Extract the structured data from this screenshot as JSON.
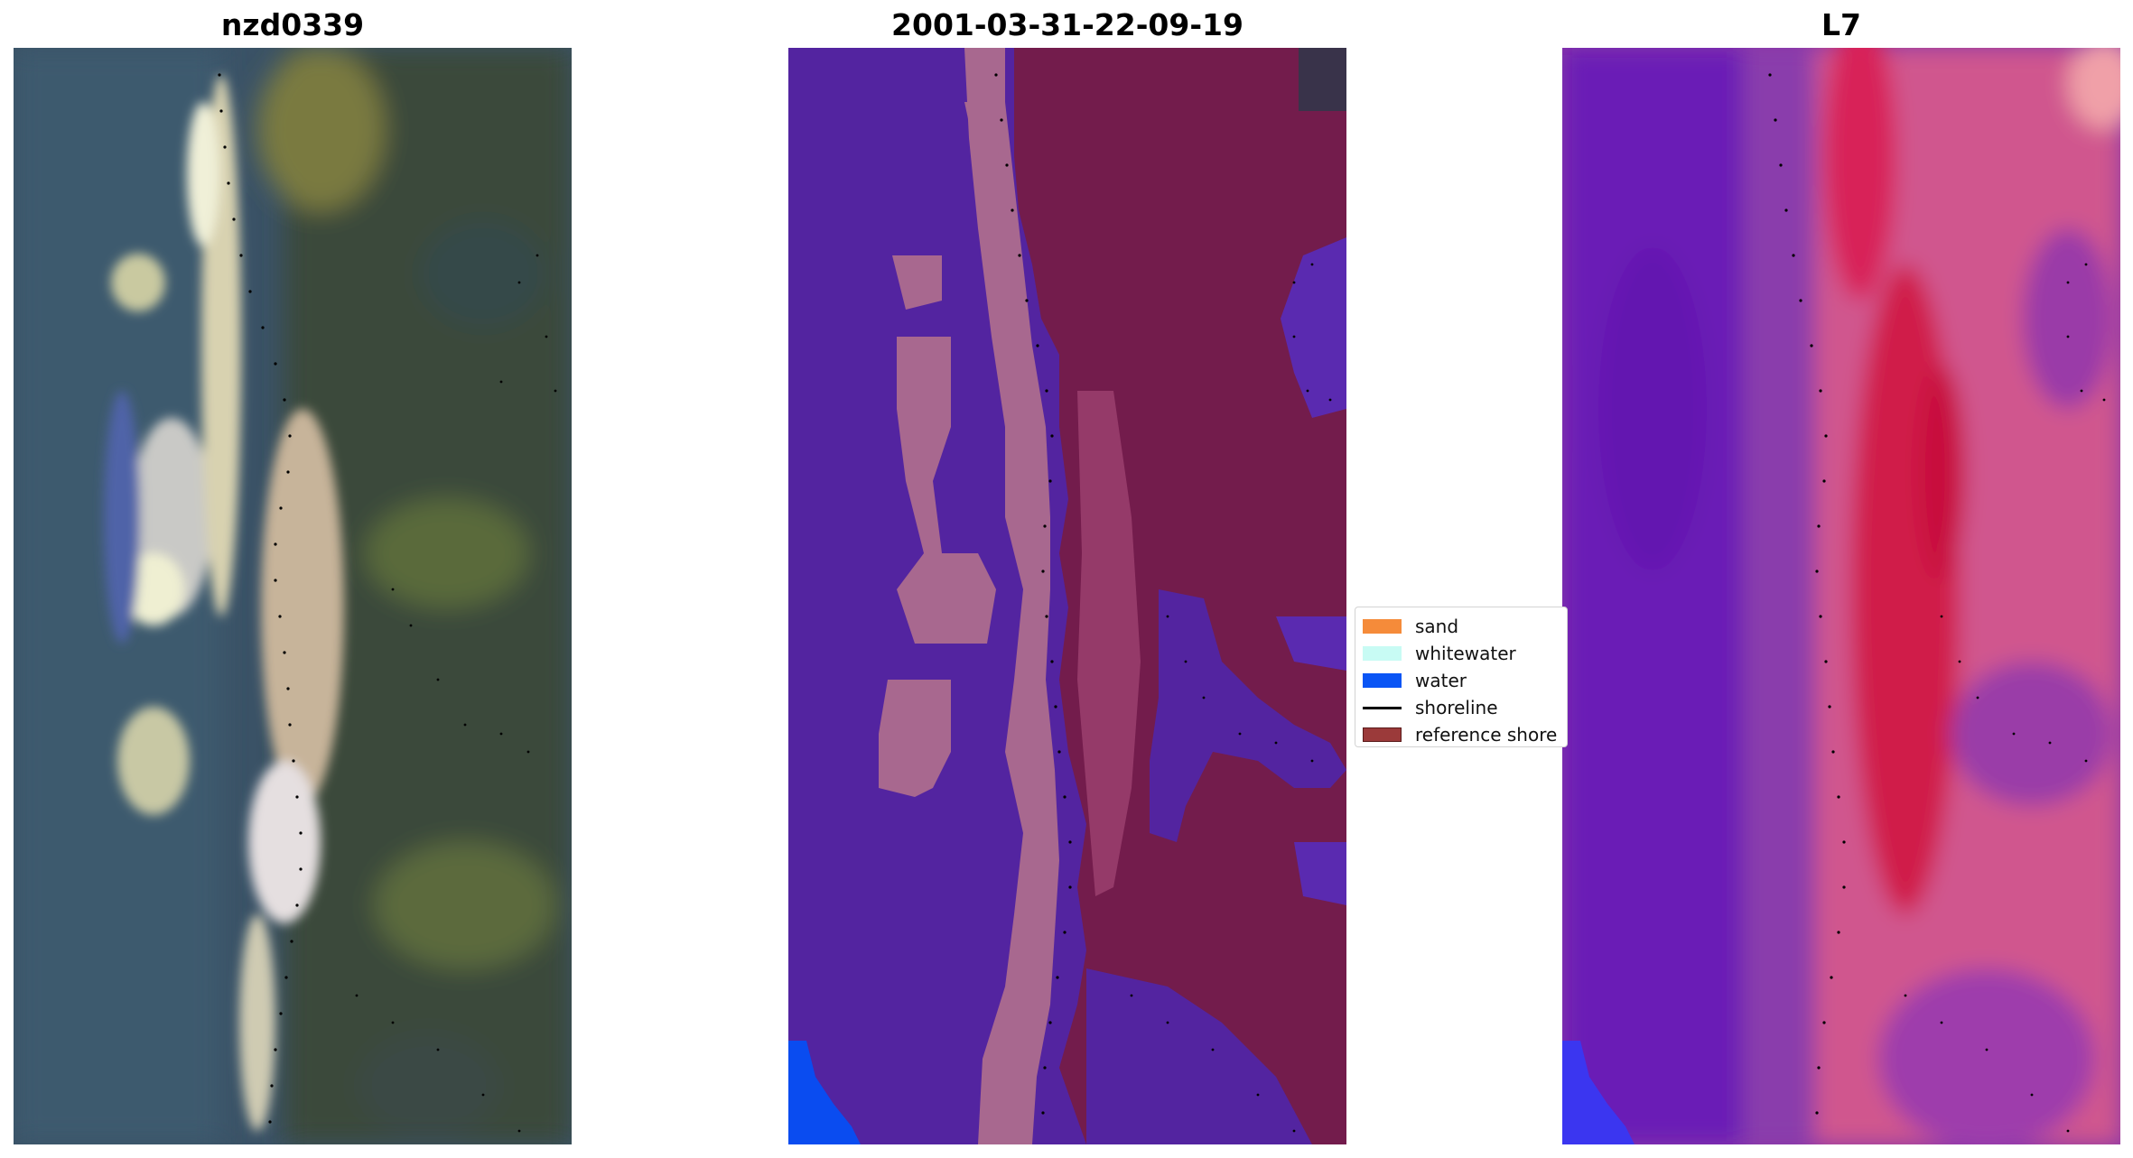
{
  "panels": {
    "left_title": "nzd0339",
    "middle_title": "2001-03-31-22-09-19",
    "right_title": "L7"
  },
  "legend": {
    "items": [
      {
        "label": "sand",
        "color": "#f58b3a",
        "kind": "patch"
      },
      {
        "label": "whitewater",
        "color": "#c8fbf4",
        "kind": "patch"
      },
      {
        "label": "water",
        "color": "#0a55f5",
        "kind": "patch"
      },
      {
        "label": "shoreline",
        "color": "#000000",
        "kind": "line"
      },
      {
        "label": "reference shore",
        "color": "#9b3a3a",
        "kind": "patch"
      }
    ]
  },
  "colors": {
    "ocean_purple": "#5324a0",
    "land_maroon": "#731c4c",
    "beach_pink": "#a8688f",
    "water_blue": "#0a4cf0",
    "l7_purple": "#7a1fb8",
    "l7_pink": "#d23a78"
  }
}
